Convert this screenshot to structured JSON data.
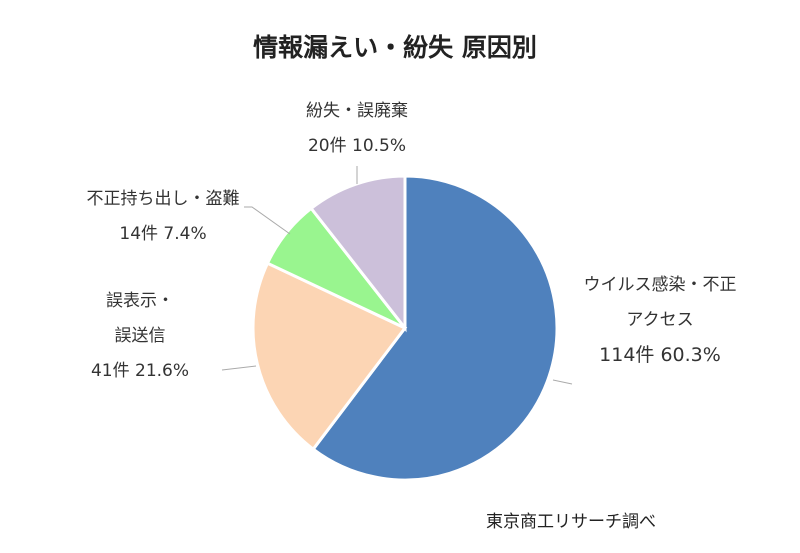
{
  "chart_data": {
    "type": "pie",
    "title": "情報漏えい・紛失 原因別",
    "start": "top",
    "direction": "clockwise",
    "slices": [
      {
        "label_lines": [
          "ウイルス感染・不正",
          "アクセス",
          "114件 60.3%"
        ],
        "count": 114,
        "percent": 60.3,
        "color": "#4f81bd"
      },
      {
        "label_lines": [
          "誤表示・",
          "誤送信",
          "41件 21.6%"
        ],
        "count": 41,
        "percent": 21.6,
        "color": "#fcd5b4"
      },
      {
        "label_lines": [
          "不正持ち出し・盗難",
          "14件 7.4%"
        ],
        "count": 14,
        "percent": 7.4,
        "color": "#99f58f"
      },
      {
        "label_lines": [
          "紛失・誤廃棄",
          "20件 10.5%"
        ],
        "count": 20,
        "percent": 10.5,
        "color": "#ccc0da"
      }
    ],
    "source_note": "東京商工リサーチ調べ"
  }
}
